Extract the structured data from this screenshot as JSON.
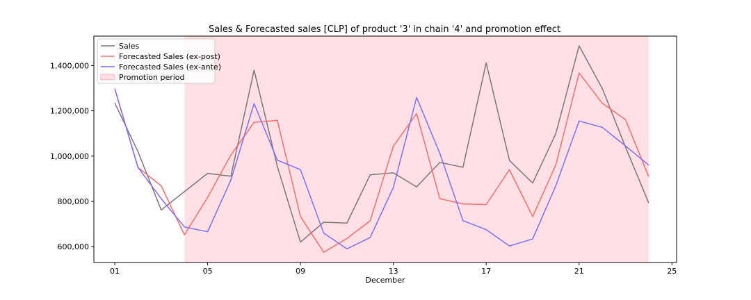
{
  "chart_data": {
    "type": "line",
    "title": "Sales & Forecasted sales [CLP] of product '3' in chain '4' and promotion effect",
    "xlabel": "December",
    "ylabel": "",
    "x": [
      1,
      2,
      3,
      4,
      5,
      6,
      7,
      8,
      9,
      10,
      11,
      12,
      13,
      14,
      15,
      16,
      17,
      18,
      19,
      20,
      21,
      22,
      23,
      24
    ],
    "xlim": [
      0.1,
      25.2
    ],
    "ylim": [
      530000,
      1530000
    ],
    "x_ticks": [
      1,
      5,
      9,
      13,
      17,
      21,
      25
    ],
    "x_tick_labels": [
      "01",
      "05",
      "09",
      "13",
      "17",
      "21",
      "25"
    ],
    "y_ticks": [
      600000,
      800000,
      1000000,
      1200000,
      1400000
    ],
    "y_tick_labels": [
      "600,000",
      "800,000",
      "1,000,000",
      "1,200,000",
      "1,400,000"
    ],
    "series": [
      {
        "name": "Sales",
        "color": "#7f7474",
        "values": [
          1235000,
          1020000,
          762000,
          843000,
          924000,
          911000,
          1380000,
          955000,
          620000,
          708000,
          704000,
          917000,
          926000,
          864000,
          972000,
          951000,
          1412000,
          981000,
          881000,
          1100000,
          1487000,
          1298000,
          1040000,
          793000
        ]
      },
      {
        "name": "Forecasted Sales (ex-post)",
        "color": "#ff6b6b",
        "values": [
          1298000,
          950000,
          869000,
          652000,
          818000,
          1005000,
          1149000,
          1158000,
          733000,
          575000,
          636000,
          714000,
          1044000,
          1188000,
          812000,
          789000,
          786000,
          940000,
          733000,
          962000,
          1367000,
          1233000,
          1161000,
          909000
        ]
      },
      {
        "name": "Forecasted Sales (ex-ante)",
        "color": "#7b6cff",
        "values": [
          1298000,
          950000,
          812000,
          687000,
          666000,
          894000,
          1232000,
          982000,
          940000,
          660000,
          590000,
          640000,
          862000,
          1259000,
          1012000,
          715000,
          675000,
          603000,
          634000,
          870000,
          1155000,
          1127000,
          1045000,
          960000
        ]
      }
    ],
    "shaded_regions": [
      {
        "name": "Promotion period",
        "x_start": 4,
        "x_end": 24,
        "color": "#ffc4cb"
      }
    ],
    "legend_position": "top-left",
    "grid": false
  }
}
